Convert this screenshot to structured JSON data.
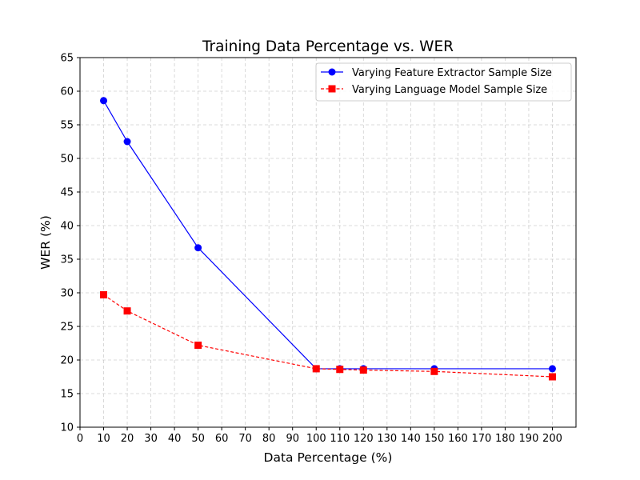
{
  "chart_data": {
    "type": "line",
    "title": "Training Data Percentage vs. WER",
    "xlabel": "Data Percentage (%)",
    "ylabel": "WER (%)",
    "xlim": [
      0,
      210
    ],
    "ylim": [
      10,
      65
    ],
    "xticks": [
      0,
      10,
      20,
      30,
      40,
      50,
      60,
      70,
      80,
      90,
      100,
      110,
      120,
      130,
      140,
      150,
      160,
      170,
      180,
      190,
      200
    ],
    "yticks": [
      10,
      15,
      20,
      25,
      30,
      35,
      40,
      45,
      50,
      55,
      60,
      65
    ],
    "grid": true,
    "legend_position": "top-right",
    "series": [
      {
        "name": "Varying Feature Extractor Sample Size",
        "color": "#0000ff",
        "line_style": "solid",
        "marker": "circle",
        "x": [
          10,
          20,
          50,
          100,
          110,
          120,
          150,
          200
        ],
        "y": [
          58.6,
          52.5,
          36.7,
          18.7,
          18.7,
          18.7,
          18.7,
          18.7
        ]
      },
      {
        "name": "Varying Language Model Sample Size",
        "color": "#ff0000",
        "line_style": "dashed",
        "marker": "square",
        "x": [
          10,
          20,
          50,
          100,
          110,
          120,
          150,
          200
        ],
        "y": [
          29.7,
          27.3,
          22.2,
          18.7,
          18.6,
          18.5,
          18.3,
          17.5
        ]
      }
    ]
  }
}
